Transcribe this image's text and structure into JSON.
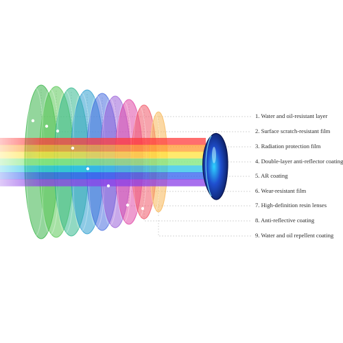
{
  "layers": [
    {
      "label": "1. Water and oil-resistant layer",
      "color": "#3ab54a"
    },
    {
      "label": "2. Surface scratch-resistant film",
      "color": "#5cc85a"
    },
    {
      "label": "3. Radiation protection film",
      "color": "#37b98f"
    },
    {
      "label": "4. Double-layer anti-reflector coating",
      "color": "#2f9fd0"
    },
    {
      "label": "5. AR coating",
      "color": "#4a6fe0"
    },
    {
      "label": "6. Wear-resistant film",
      "color": "#9b62d8"
    },
    {
      "label": "7. High-definition resin lenses",
      "color": "#e04aa8"
    },
    {
      "label": "8. Anti-reflective coating",
      "color": "#f05a6a"
    },
    {
      "label": "9. Water and oil repellent coating",
      "color": "#f7b85a"
    }
  ],
  "beam_colors": [
    "#ff3b3b",
    "#ff9a2e",
    "#ffe23a",
    "#4ddc4a",
    "#23c3e6",
    "#2e5ef0",
    "#8a3ee8"
  ],
  "lens_color": "#1f4fcf"
}
